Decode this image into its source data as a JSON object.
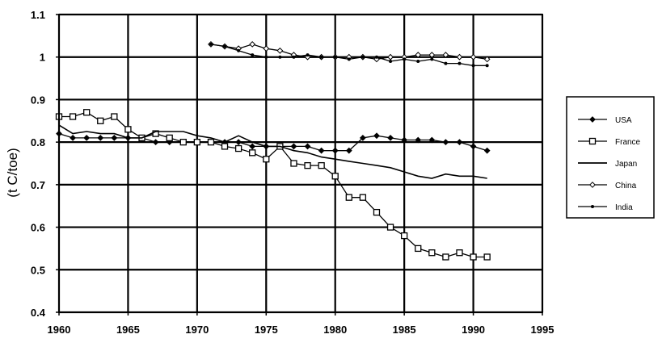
{
  "chart_data": {
    "type": "line",
    "title": "",
    "xlabel": "",
    "ylabel": "(t C/toe)",
    "xlim": [
      1960,
      1995
    ],
    "ylim": [
      0.4,
      1.1
    ],
    "xticks": [
      "1960",
      "1965",
      "1970",
      "1975",
      "1980",
      "1985",
      "1990",
      "1995"
    ],
    "yticks": [
      "0.4",
      "0.5",
      "0.6",
      "0.7",
      "0.8",
      "0.9",
      "1",
      "1.1"
    ],
    "grid": "horizontal and vertical",
    "legend_position": "right",
    "series": [
      {
        "name": "USA",
        "marker": "filled-diamond",
        "color": "#000000",
        "x": [
          1960,
          1961,
          1962,
          1963,
          1964,
          1965,
          1966,
          1967,
          1968,
          1969,
          1970,
          1971,
          1972,
          1973,
          1974,
          1975,
          1976,
          1977,
          1978,
          1979,
          1980,
          1981,
          1982,
          1983,
          1984,
          1985,
          1986,
          1987,
          1988,
          1989,
          1990,
          1991
        ],
        "y": [
          0.82,
          0.81,
          0.81,
          0.81,
          0.81,
          0.81,
          0.81,
          0.8,
          0.8,
          0.8,
          0.8,
          0.8,
          0.8,
          0.8,
          0.79,
          0.79,
          0.79,
          0.79,
          0.79,
          0.78,
          0.78,
          0.78,
          0.81,
          0.815,
          0.81,
          0.805,
          0.805,
          0.805,
          0.8,
          0.8,
          0.79,
          0.78
        ]
      },
      {
        "name": "France",
        "marker": "open-square",
        "color": "#000000",
        "x": [
          1960,
          1961,
          1962,
          1963,
          1964,
          1965,
          1966,
          1967,
          1968,
          1969,
          1970,
          1971,
          1972,
          1973,
          1974,
          1975,
          1976,
          1977,
          1978,
          1979,
          1980,
          1981,
          1982,
          1983,
          1984,
          1985,
          1986,
          1987,
          1988,
          1989,
          1990,
          1991
        ],
        "y": [
          0.86,
          0.86,
          0.87,
          0.85,
          0.86,
          0.83,
          0.81,
          0.82,
          0.81,
          0.8,
          0.8,
          0.8,
          0.79,
          0.785,
          0.775,
          0.76,
          0.79,
          0.75,
          0.745,
          0.745,
          0.72,
          0.67,
          0.67,
          0.635,
          0.6,
          0.58,
          0.55,
          0.54,
          0.53,
          0.54,
          0.53,
          0.53
        ]
      },
      {
        "name": "Japan",
        "marker": "none",
        "color": "#000000",
        "x": [
          1960,
          1961,
          1962,
          1963,
          1964,
          1965,
          1966,
          1967,
          1968,
          1969,
          1970,
          1971,
          1972,
          1973,
          1974,
          1975,
          1976,
          1977,
          1978,
          1979,
          1980,
          1981,
          1982,
          1983,
          1984,
          1985,
          1986,
          1987,
          1988,
          1989,
          1990,
          1991
        ],
        "y": [
          0.84,
          0.82,
          0.825,
          0.82,
          0.82,
          0.81,
          0.81,
          0.825,
          0.825,
          0.825,
          0.815,
          0.81,
          0.8,
          0.815,
          0.8,
          0.79,
          0.79,
          0.78,
          0.775,
          0.765,
          0.76,
          0.755,
          0.75,
          0.745,
          0.74,
          0.73,
          0.72,
          0.715,
          0.725,
          0.72,
          0.72,
          0.715
        ]
      },
      {
        "name": "China",
        "marker": "open-diamond",
        "color": "#000000",
        "x": [
          1971,
          1972,
          1973,
          1974,
          1975,
          1976,
          1977,
          1978,
          1979,
          1980,
          1981,
          1982,
          1983,
          1984,
          1985,
          1986,
          1987,
          1988,
          1989,
          1990,
          1991
        ],
        "y": [
          1.03,
          1.025,
          1.02,
          1.03,
          1.02,
          1.015,
          1.005,
          1.0,
          1.0,
          1.0,
          1.0,
          1.0,
          0.995,
          1.0,
          1.0,
          1.005,
          1.005,
          1.005,
          1.0,
          1.0,
          0.995
        ]
      },
      {
        "name": "India",
        "marker": "filled-dot",
        "color": "#000000",
        "x": [
          1971,
          1972,
          1973,
          1974,
          1975,
          1976,
          1977,
          1978,
          1979,
          1980,
          1981,
          1982,
          1983,
          1984,
          1985,
          1986,
          1987,
          1988,
          1989,
          1990,
          1991
        ],
        "y": [
          1.03,
          1.025,
          1.015,
          1.005,
          1.0,
          1.0,
          1.0,
          1.005,
          1.0,
          1.0,
          0.995,
          1.0,
          1.0,
          0.99,
          0.995,
          0.99,
          0.995,
          0.985,
          0.985,
          0.98,
          0.98
        ]
      }
    ]
  }
}
